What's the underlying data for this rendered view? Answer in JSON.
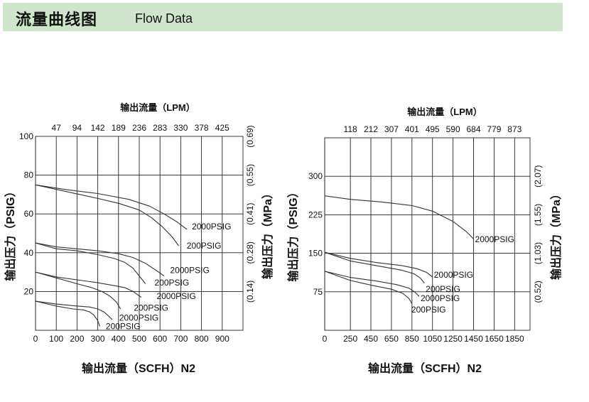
{
  "header": {
    "title_cn": "流量曲线图",
    "title_en": "Flow Data"
  },
  "colors": {
    "header_bg": "#cfe6cc",
    "grid": "#222222",
    "curve": "#333333"
  },
  "chart_data": [
    {
      "type": "line",
      "grid": true,
      "xlabel": "输出流量（SCFH）N2",
      "ylabel": "输出压力（PSIG）",
      "x2label": "输出流量（LPM）",
      "y2label": "输出压力（MPa）",
      "xlim": [
        0,
        1000
      ],
      "ylim": [
        0,
        100
      ],
      "xticks": [
        0,
        100,
        200,
        300,
        400,
        500,
        600,
        700,
        800,
        900
      ],
      "xtick_labels": [
        "0",
        "100",
        "200",
        "300",
        "400",
        "500",
        "600",
        "700",
        "800",
        "900"
      ],
      "yticks": [
        20,
        40,
        60,
        80,
        100
      ],
      "ytick_labels": [
        "20",
        "40",
        "60",
        "80",
        "100"
      ],
      "x2ticks": [
        100,
        200,
        300,
        400,
        500,
        600,
        700,
        800,
        900
      ],
      "x2tick_labels": [
        "47",
        "94",
        "142",
        "189",
        "236",
        "283",
        "330",
        "378",
        "425"
      ],
      "y2ticks": [
        20,
        40,
        60,
        80,
        100
      ],
      "y2tick_labels": [
        "(0.14)",
        "(0.28)",
        "(0.41)",
        "(0.55)",
        "(0.69)"
      ],
      "series": [
        {
          "name": "2000PSIG",
          "x": [
            0,
            150,
            300,
            450,
            550,
            620,
            680,
            730
          ],
          "y": [
            75,
            72.5,
            70.5,
            67.5,
            64,
            60,
            56,
            52
          ]
        },
        {
          "name": "200PSIG",
          "x": [
            0,
            150,
            300,
            400,
            500,
            560,
            610,
            660,
            690
          ],
          "y": [
            75,
            71.5,
            68,
            65.5,
            62,
            58,
            53.5,
            48,
            43.5
          ]
        },
        {
          "name": "2000PSIG",
          "x": [
            0,
            100,
            200,
            300,
            400,
            470,
            530,
            580,
            620
          ],
          "y": [
            45,
            43,
            42,
            41,
            39.5,
            37.5,
            34.5,
            31,
            28
          ]
        },
        {
          "name": "200PSIG",
          "x": [
            0,
            100,
            200,
            300,
            380,
            430,
            470,
            500,
            530
          ],
          "y": [
            45,
            42,
            41,
            39,
            37,
            35,
            32,
            28,
            24
          ]
        },
        {
          "name": "2000PSIG",
          "x": [
            0,
            100,
            200,
            300,
            380,
            430,
            470,
            510
          ],
          "y": [
            30,
            27.5,
            26,
            24.5,
            23,
            22,
            20,
            17
          ]
        },
        {
          "name": "200PSIG",
          "x": [
            0,
            100,
            200,
            270,
            320,
            360,
            390,
            410
          ],
          "y": [
            30,
            27,
            24,
            22,
            20,
            17.5,
            14.5,
            11
          ]
        },
        {
          "name": "2000PSIG",
          "x": [
            0,
            100,
            200,
            260,
            300,
            330,
            350,
            370
          ],
          "y": [
            15,
            13.5,
            12.5,
            12,
            11,
            9.5,
            7.5,
            5.5
          ]
        },
        {
          "name": "200PSIG",
          "x": [
            0,
            100,
            180,
            230,
            260,
            280,
            300,
            310
          ],
          "y": [
            15,
            12.5,
            11,
            10.5,
            9.5,
            8,
            5,
            2
          ]
        }
      ],
      "curve_labels": [
        {
          "text": "2000PSIG",
          "x": 740,
          "y": 53.5
        },
        {
          "text": "200PSIG",
          "x": 715,
          "y": 43.5
        },
        {
          "text": "2000PSIG",
          "x": 635,
          "y": 31
        },
        {
          "text": "200PSIG",
          "x": 560,
          "y": 24.5
        },
        {
          "text": "2000PSIG",
          "x": 570,
          "y": 17.5
        },
        {
          "text": "200PSIG",
          "x": 460,
          "y": 11.5
        },
        {
          "text": "2000PSIG",
          "x": 390,
          "y": 6.5
        },
        {
          "text": "200PSIG",
          "x": 325,
          "y": 2
        }
      ]
    },
    {
      "type": "line",
      "grid": true,
      "xlabel": "输出流量（SCFH）N2",
      "ylabel": "输出压力（PSIG）",
      "x2label": "输出流量（LPM）",
      "y2label": "输出压力（MPa）",
      "xlim": [
        0,
        2000
      ],
      "ylim": [
        0,
        375
      ],
      "xticks": [
        0,
        250,
        450,
        650,
        850,
        1050,
        1250,
        1450,
        1650,
        1850
      ],
      "xtick_labels": [
        "0",
        "250",
        "450",
        "650",
        "850",
        "1050",
        "1250",
        "1450",
        "1650",
        "1850"
      ],
      "yticks": [
        75,
        150,
        225,
        300
      ],
      "ytick_labels": [
        "75",
        "150",
        "225",
        "300"
      ],
      "x2ticks": [
        250,
        450,
        650,
        850,
        1050,
        1250,
        1450,
        1650,
        1850
      ],
      "x2tick_labels": [
        "118",
        "212",
        "307",
        "401",
        "495",
        "590",
        "684",
        "779",
        "873"
      ],
      "y2ticks": [
        75,
        150,
        225,
        300
      ],
      "y2tick_labels": [
        "(0.52)",
        "(1.03)",
        "(1.55)",
        "(2.07)"
      ],
      "series": [
        {
          "name": "2000PSIG",
          "x": [
            0,
            250,
            550,
            850,
            1050,
            1250,
            1380,
            1450
          ],
          "y": [
            262,
            255,
            250,
            243,
            232,
            212,
            192,
            178
          ]
        },
        {
          "name": "2000PSIG",
          "x": [
            0,
            250,
            500,
            750,
            900,
            990,
            1050
          ],
          "y": [
            152,
            140,
            132,
            126,
            120,
            113,
            104
          ]
        },
        {
          "name": "200PSIG",
          "x": [
            0,
            250,
            500,
            750,
            870,
            930,
            970
          ],
          "y": [
            152,
            135,
            126,
            117,
            110,
            102,
            92
          ]
        },
        {
          "name": "2000PSIG",
          "x": [
            0,
            250,
            500,
            700,
            820,
            880,
            920
          ],
          "y": [
            115,
            103,
            96,
            89,
            82,
            74,
            66
          ]
        },
        {
          "name": "200PSIG",
          "x": [
            0,
            250,
            450,
            650,
            760,
            820,
            850
          ],
          "y": [
            115,
            97,
            88,
            80,
            72,
            62,
            52
          ]
        }
      ],
      "curve_labels": [
        {
          "text": "2000PSIG",
          "x": 1450,
          "y": 177
        },
        {
          "text": "2000PSIG",
          "x": 1050,
          "y": 108
        },
        {
          "text": "200PSIG",
          "x": 970,
          "y": 80
        },
        {
          "text": "2000PSIG",
          "x": 920,
          "y": 62
        },
        {
          "text": "200PSIG",
          "x": 830,
          "y": 40
        }
      ]
    }
  ]
}
